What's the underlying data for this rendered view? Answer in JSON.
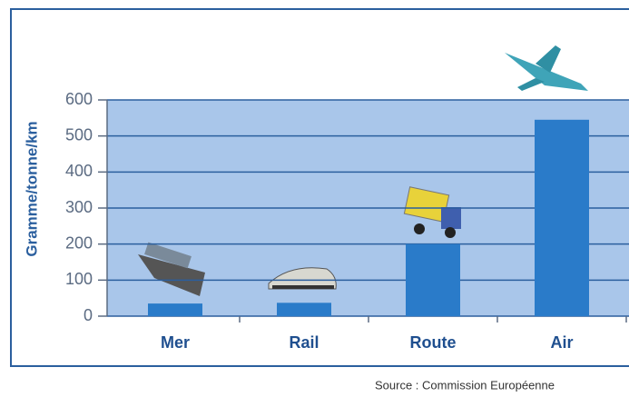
{
  "chart_data": {
    "type": "bar",
    "y_label": "Gramme/tonne/km",
    "categories": [
      "Mer",
      "Rail",
      "Route",
      "Air"
    ],
    "values": [
      35,
      37,
      200,
      545
    ],
    "color": "#2a7bc9",
    "ylim": [
      0,
      600
    ],
    "yticks": [
      0,
      100,
      200,
      300,
      400,
      500,
      600
    ],
    "grid": true,
    "source": "Source : Commission Européenne"
  }
}
